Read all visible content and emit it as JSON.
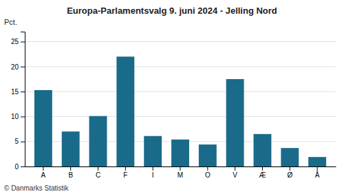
{
  "chart_data": {
    "type": "bar",
    "title": "Europa-Parlamentsvalg 9. juni 2024 - Jelling Nord",
    "ylabel": "Pct.",
    "footnote": "© Danmarks Statistik",
    "categories": [
      "A",
      "B",
      "C",
      "F",
      "I",
      "M",
      "O",
      "V",
      "Æ",
      "Ø",
      "Å"
    ],
    "values": [
      15.3,
      7.0,
      10.1,
      22.0,
      6.1,
      5.4,
      4.4,
      17.5,
      6.5,
      3.7,
      1.9
    ],
    "color": "#1a6b8a",
    "ylim": [
      0,
      27
    ],
    "yticks": [
      0,
      5,
      10,
      15,
      20,
      25
    ],
    "grid": true
  }
}
